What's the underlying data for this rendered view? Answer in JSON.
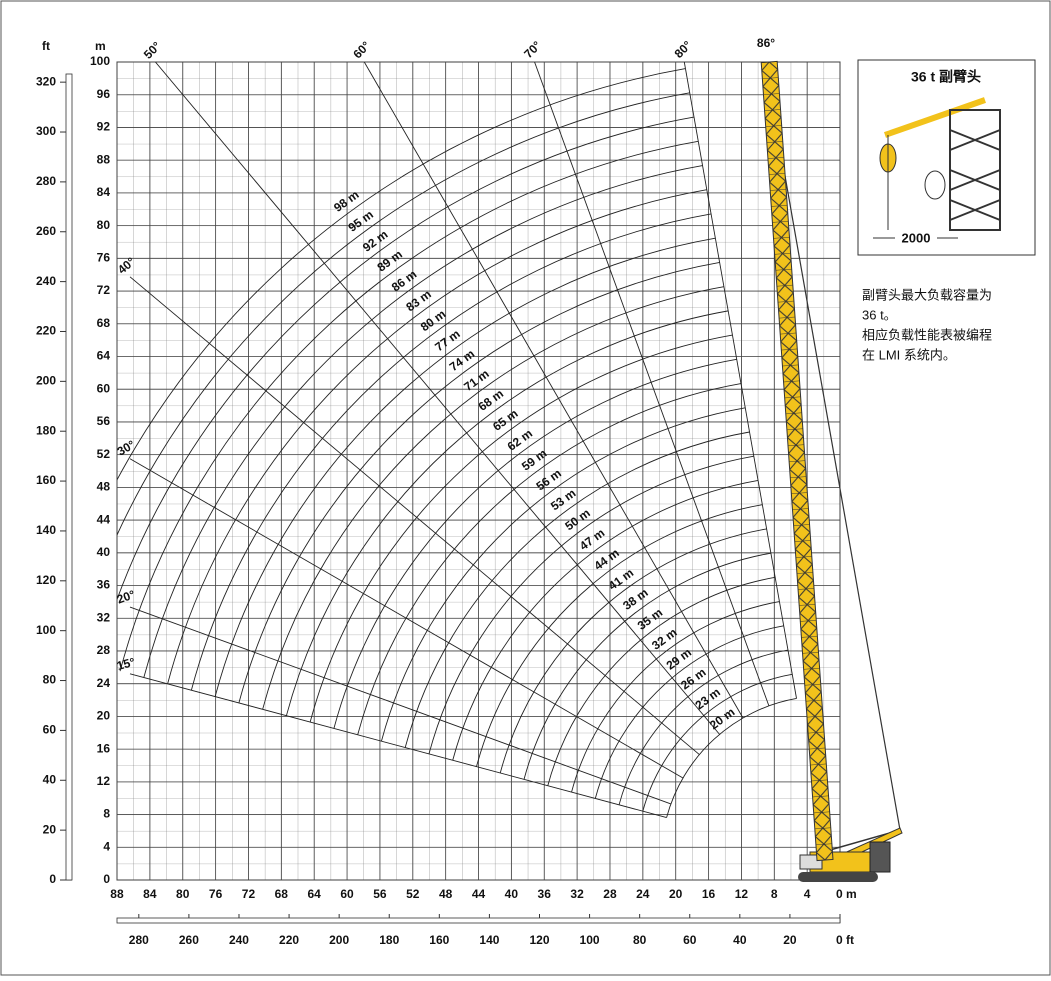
{
  "axes": {
    "y_left_unit": "ft",
    "y_right_unit": "m",
    "y_m_ticks": [
      0,
      4,
      8,
      12,
      16,
      20,
      24,
      28,
      32,
      36,
      40,
      44,
      48,
      52,
      56,
      60,
      64,
      68,
      72,
      76,
      80,
      84,
      88,
      92,
      96,
      100
    ],
    "y_ft_ticks": [
      0,
      20,
      40,
      60,
      80,
      100,
      120,
      140,
      160,
      180,
      200,
      220,
      240,
      260,
      280,
      300,
      320
    ],
    "x_m_ticks": [
      88,
      84,
      80,
      76,
      72,
      68,
      64,
      60,
      56,
      52,
      48,
      44,
      40,
      36,
      32,
      28,
      24,
      20,
      16,
      12,
      8,
      4,
      {
        "value": 0,
        "label": "0 m"
      }
    ],
    "x_ft_ticks": [
      280,
      260,
      240,
      220,
      200,
      180,
      160,
      140,
      120,
      100,
      80,
      60,
      40,
      20,
      {
        "value": 0,
        "label": "0 ft"
      }
    ]
  },
  "boom_angle": {
    "value": 86,
    "label": "86°"
  },
  "angles": [
    {
      "value": 80,
      "label": "80°"
    },
    {
      "value": 70,
      "label": "70°"
    },
    {
      "value": 60,
      "label": "60°"
    },
    {
      "value": 50,
      "label": "50°"
    },
    {
      "value": 40,
      "label": "40°"
    },
    {
      "value": 30,
      "label": "30°"
    },
    {
      "value": 20,
      "label": "20°"
    },
    {
      "value": 15,
      "label": "15°"
    }
  ],
  "jib_lengths": [
    {
      "value": 98,
      "label": "98 m"
    },
    {
      "value": 95,
      "label": "95 m"
    },
    {
      "value": 92,
      "label": "92 m"
    },
    {
      "value": 89,
      "label": "89 m"
    },
    {
      "value": 86,
      "label": "86 m"
    },
    {
      "value": 83,
      "label": "83 m"
    },
    {
      "value": 80,
      "label": "80 m"
    },
    {
      "value": 77,
      "label": "77 m"
    },
    {
      "value": 74,
      "label": "74 m"
    },
    {
      "value": 71,
      "label": "71 m"
    },
    {
      "value": 68,
      "label": "68 m"
    },
    {
      "value": 65,
      "label": "65 m"
    },
    {
      "value": 62,
      "label": "62 m"
    },
    {
      "value": 59,
      "label": "59 m"
    },
    {
      "value": 56,
      "label": "56 m"
    },
    {
      "value": 53,
      "label": "53 m"
    },
    {
      "value": 50,
      "label": "50 m"
    },
    {
      "value": 47,
      "label": "47 m"
    },
    {
      "value": 44,
      "label": "44 m"
    },
    {
      "value": 41,
      "label": "41 m"
    },
    {
      "value": 38,
      "label": "38 m"
    },
    {
      "value": 35,
      "label": "35 m"
    },
    {
      "value": 32,
      "label": "32 m"
    },
    {
      "value": 29,
      "label": "29 m"
    },
    {
      "value": 26,
      "label": "26 m"
    },
    {
      "value": 23,
      "label": "23 m"
    },
    {
      "value": 20,
      "label": "20 m"
    }
  ],
  "inset": {
    "title": "36 t 副臂头",
    "dimension": "2000"
  },
  "note": [
    "副臂头最大负载容量为",
    "36 t。",
    "相应负载性能表被编程",
    "在 LMI 系统内。"
  ]
}
